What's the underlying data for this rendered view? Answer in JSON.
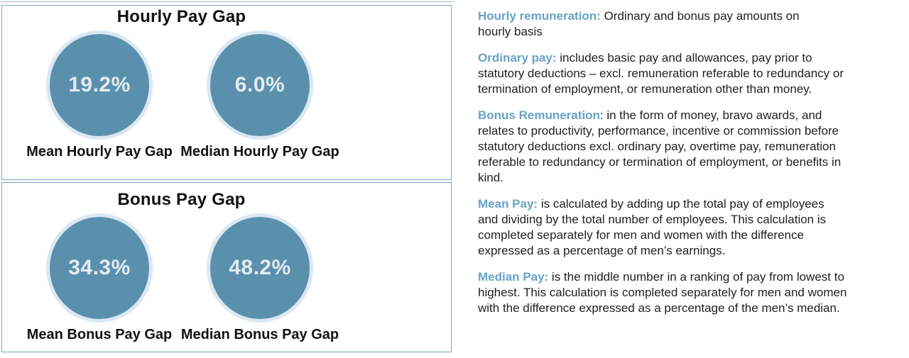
{
  "colors": {
    "panel_border": "#78a7c8",
    "circle_fill": "#5b90ad",
    "circle_ring": "#dbe8f2",
    "circle_value_text": "#e2ecf1",
    "heading_text": "#121212",
    "term_blue": "#68a2c6",
    "body_text": "#1f1f1f"
  },
  "panels": [
    {
      "title": "Hourly Pay Gap",
      "gauges": [
        {
          "value": "19.2%",
          "label": "Mean Hourly Pay Gap"
        },
        {
          "value": "6.0%",
          "label": "Median Hourly Pay Gap"
        }
      ]
    },
    {
      "title": "Bonus Pay Gap",
      "gauges": [
        {
          "value": "34.3%",
          "label": "Mean Bonus Pay Gap"
        },
        {
          "value": "48.2%",
          "label": "Median Bonus Pay Gap"
        }
      ]
    }
  ],
  "definitions": [
    {
      "term": "Hourly remuneration:",
      "text": " Ordinary and bonus pay amounts on hourly basis"
    },
    {
      "term": "Ordinary pay:",
      "text": " includes basic pay and allowances, pay prior to statutory deductions – excl. remuneration referable to redundancy or termination of employment, or remuneration other than money."
    },
    {
      "term": "Bonus Remuneration",
      "text": ": in the form of money, bravo awards, and relates to productivity, performance, incentive or commission before statutory deductions excl. ordinary pay, overtime pay, remuneration referable to redundancy or termination of employment, or benefits in kind."
    },
    {
      "term": "Mean Pay:",
      "text": " is calculated by adding up the total pay of employees and dividing by the total number of employees. This calculation is completed separately for men and women with the difference expressed as a percentage of men’s earnings."
    },
    {
      "term": "Median Pay:",
      "text": " is the middle number in a ranking of pay from lowest to highest. This calculation is completed separately for men and women with the difference expressed as a percentage of the men’s median."
    }
  ],
  "chart_data": [
    {
      "type": "bar",
      "render_style": "kpi-circles",
      "title": "Hourly Pay Gap",
      "categories": [
        "Mean Hourly Pay Gap",
        "Median Hourly Pay Gap"
      ],
      "values": [
        19.2,
        6.0
      ],
      "unit": "%",
      "xlabel": "",
      "ylabel": ""
    },
    {
      "type": "bar",
      "render_style": "kpi-circles",
      "title": "Bonus Pay Gap",
      "categories": [
        "Mean Bonus Pay Gap",
        "Median Bonus Pay Gap"
      ],
      "values": [
        34.3,
        48.2
      ],
      "unit": "%",
      "xlabel": "",
      "ylabel": ""
    }
  ]
}
